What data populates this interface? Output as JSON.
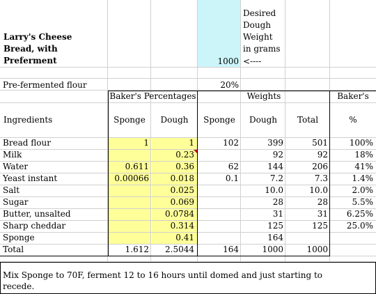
{
  "title": "Larry's Cheese Bread, with Preferment",
  "title_lines": [
    "Larry's Cheese",
    "Bread, with",
    "Preferment"
  ],
  "desired_weight": {
    "value": "1000",
    "arrow": "<----",
    "label_lines": [
      "Desired",
      "Dough",
      "Weight",
      "in grams"
    ]
  },
  "preferment": {
    "label": "Pre-fermented flour",
    "value": "20%"
  },
  "headers": {
    "bakers_percentages": "Baker's Percentages",
    "weights": "Weights",
    "bakers": "Baker's",
    "ingredients": "Ingredients",
    "sponge": "Sponge",
    "dough": "Dough",
    "sponge2": "Sponge",
    "dough2": "Dough",
    "total": "Total",
    "pct": "%"
  },
  "rows": [
    {
      "name": "Bread flour",
      "bp_sponge": "1",
      "bp_dough": "1",
      "w_sponge": "102",
      "w_dough": "399",
      "total": "501",
      "pct": "100%"
    },
    {
      "name": "Milk",
      "bp_sponge": "",
      "bp_dough": "0.23",
      "w_sponge": "",
      "w_dough": "92",
      "total": "92",
      "pct": "18%"
    },
    {
      "name": "Water",
      "bp_sponge": "0.611",
      "bp_dough": "0.36",
      "w_sponge": "62",
      "w_dough": "144",
      "total": "206",
      "pct": "41%"
    },
    {
      "name": "Yeast instant",
      "bp_sponge": "0.00066",
      "bp_dough": "0.018",
      "w_sponge": "0.1",
      "w_dough": "7.2",
      "total": "7.3",
      "pct": "1.4%"
    },
    {
      "name": "Salt",
      "bp_sponge": "",
      "bp_dough": "0.025",
      "w_sponge": "",
      "w_dough": "10.0",
      "total": "10.0",
      "pct": "2.0%"
    },
    {
      "name": "Sugar",
      "bp_sponge": "",
      "bp_dough": "0.069",
      "w_sponge": "",
      "w_dough": "28",
      "total": "28",
      "pct": "5.5%"
    },
    {
      "name": "Butter, unsalted",
      "bp_sponge": "",
      "bp_dough": "0.0784",
      "w_sponge": "",
      "w_dough": "31",
      "total": "31",
      "pct": "6.25%"
    },
    {
      "name": "Sharp cheddar",
      "bp_sponge": "",
      "bp_dough": "0.314",
      "w_sponge": "",
      "w_dough": "125",
      "total": "125",
      "pct": "25.0%"
    },
    {
      "name": "Sponge",
      "bp_sponge": "",
      "bp_dough": "0.41",
      "w_sponge": "",
      "w_dough": "164",
      "total": "",
      "pct": ""
    }
  ],
  "totals": {
    "name": "Total",
    "bp_sponge": "1.612",
    "bp_dough": "2.5044",
    "w_sponge": "164",
    "w_dough": "1000",
    "total": "1000"
  },
  "note": "Mix Sponge to 70F, ferment 12 to 16 hours until domed and just starting to recede.",
  "note_lines": [
    "Mix Sponge to 70F, ferment 12 to 16 hours until domed and just starting to",
    "recede."
  ],
  "colors": {
    "highlight_blue": "#ccf5fa",
    "highlight_yellow": "#ffff99",
    "gridline": "#d0d0d0",
    "comment_marker": "#c00000"
  }
}
